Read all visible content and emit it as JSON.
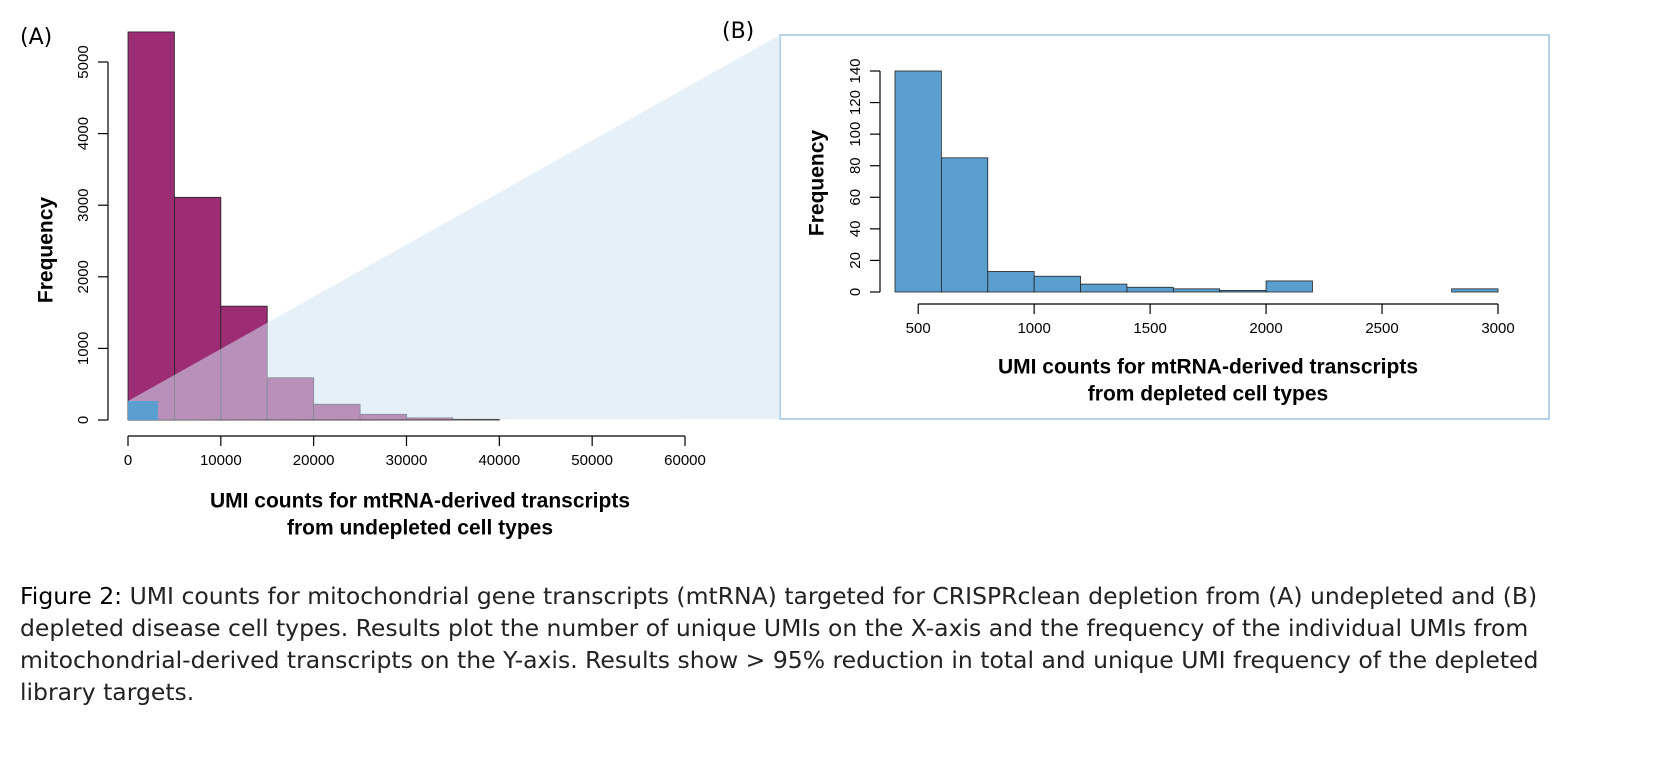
{
  "chart_data": [
    {
      "type": "histogram",
      "panel_label": "(A)",
      "ylabel": "Frequency",
      "xlabel": [
        "UMI counts for mtRNA-derived transcripts",
        "from undepleted cell types"
      ],
      "bins": [
        0,
        5000,
        10000,
        15000,
        20000,
        25000,
        30000,
        35000,
        40000
      ],
      "counts": [
        5420,
        3110,
        1590,
        590,
        220,
        80,
        30,
        10
      ],
      "color": "#9c2c74",
      "xlim": [
        0,
        60000
      ],
      "xticks": [
        0,
        10000,
        20000,
        30000,
        40000,
        50000,
        60000
      ],
      "ylim": [
        0,
        5000
      ],
      "yticks": [
        0,
        1000,
        2000,
        3000,
        4000,
        5000
      ]
    },
    {
      "type": "histogram",
      "panel_label": "(B)",
      "ylabel": "Frequency",
      "xlabel": [
        "UMI counts for mtRNA-derived transcripts",
        "from depleted cell types"
      ],
      "bins": [
        400,
        600,
        800,
        1000,
        1200,
        1400,
        1600,
        1800,
        2000,
        2200,
        2400,
        2600,
        2800,
        3000
      ],
      "counts": [
        140,
        85,
        13,
        10,
        5,
        3,
        2,
        1,
        7,
        0,
        0,
        0,
        2
      ],
      "color": "#5b9fd0",
      "xlim": [
        400,
        3000
      ],
      "xticks": [
        500,
        1000,
        1500,
        2000,
        2500,
        3000
      ],
      "ylim": [
        0,
        140
      ],
      "yticks": [
        0,
        20,
        40,
        60,
        80,
        100,
        120,
        140
      ]
    }
  ],
  "caption_label": "Figure 2:",
  "caption": "UMI counts for mitochondrial gene transcripts (mtRNA) targeted for CRISPRclean depletion from (A) undepleted and (B) depleted disease cell types. Results plot the number of unique UMIs on the X-axis and the frequency of the individual UMIs from mitochondrial-derived transcripts on the Y-axis. Results show > 95% reduction in total and unique UMI frequency of the depleted library targets."
}
